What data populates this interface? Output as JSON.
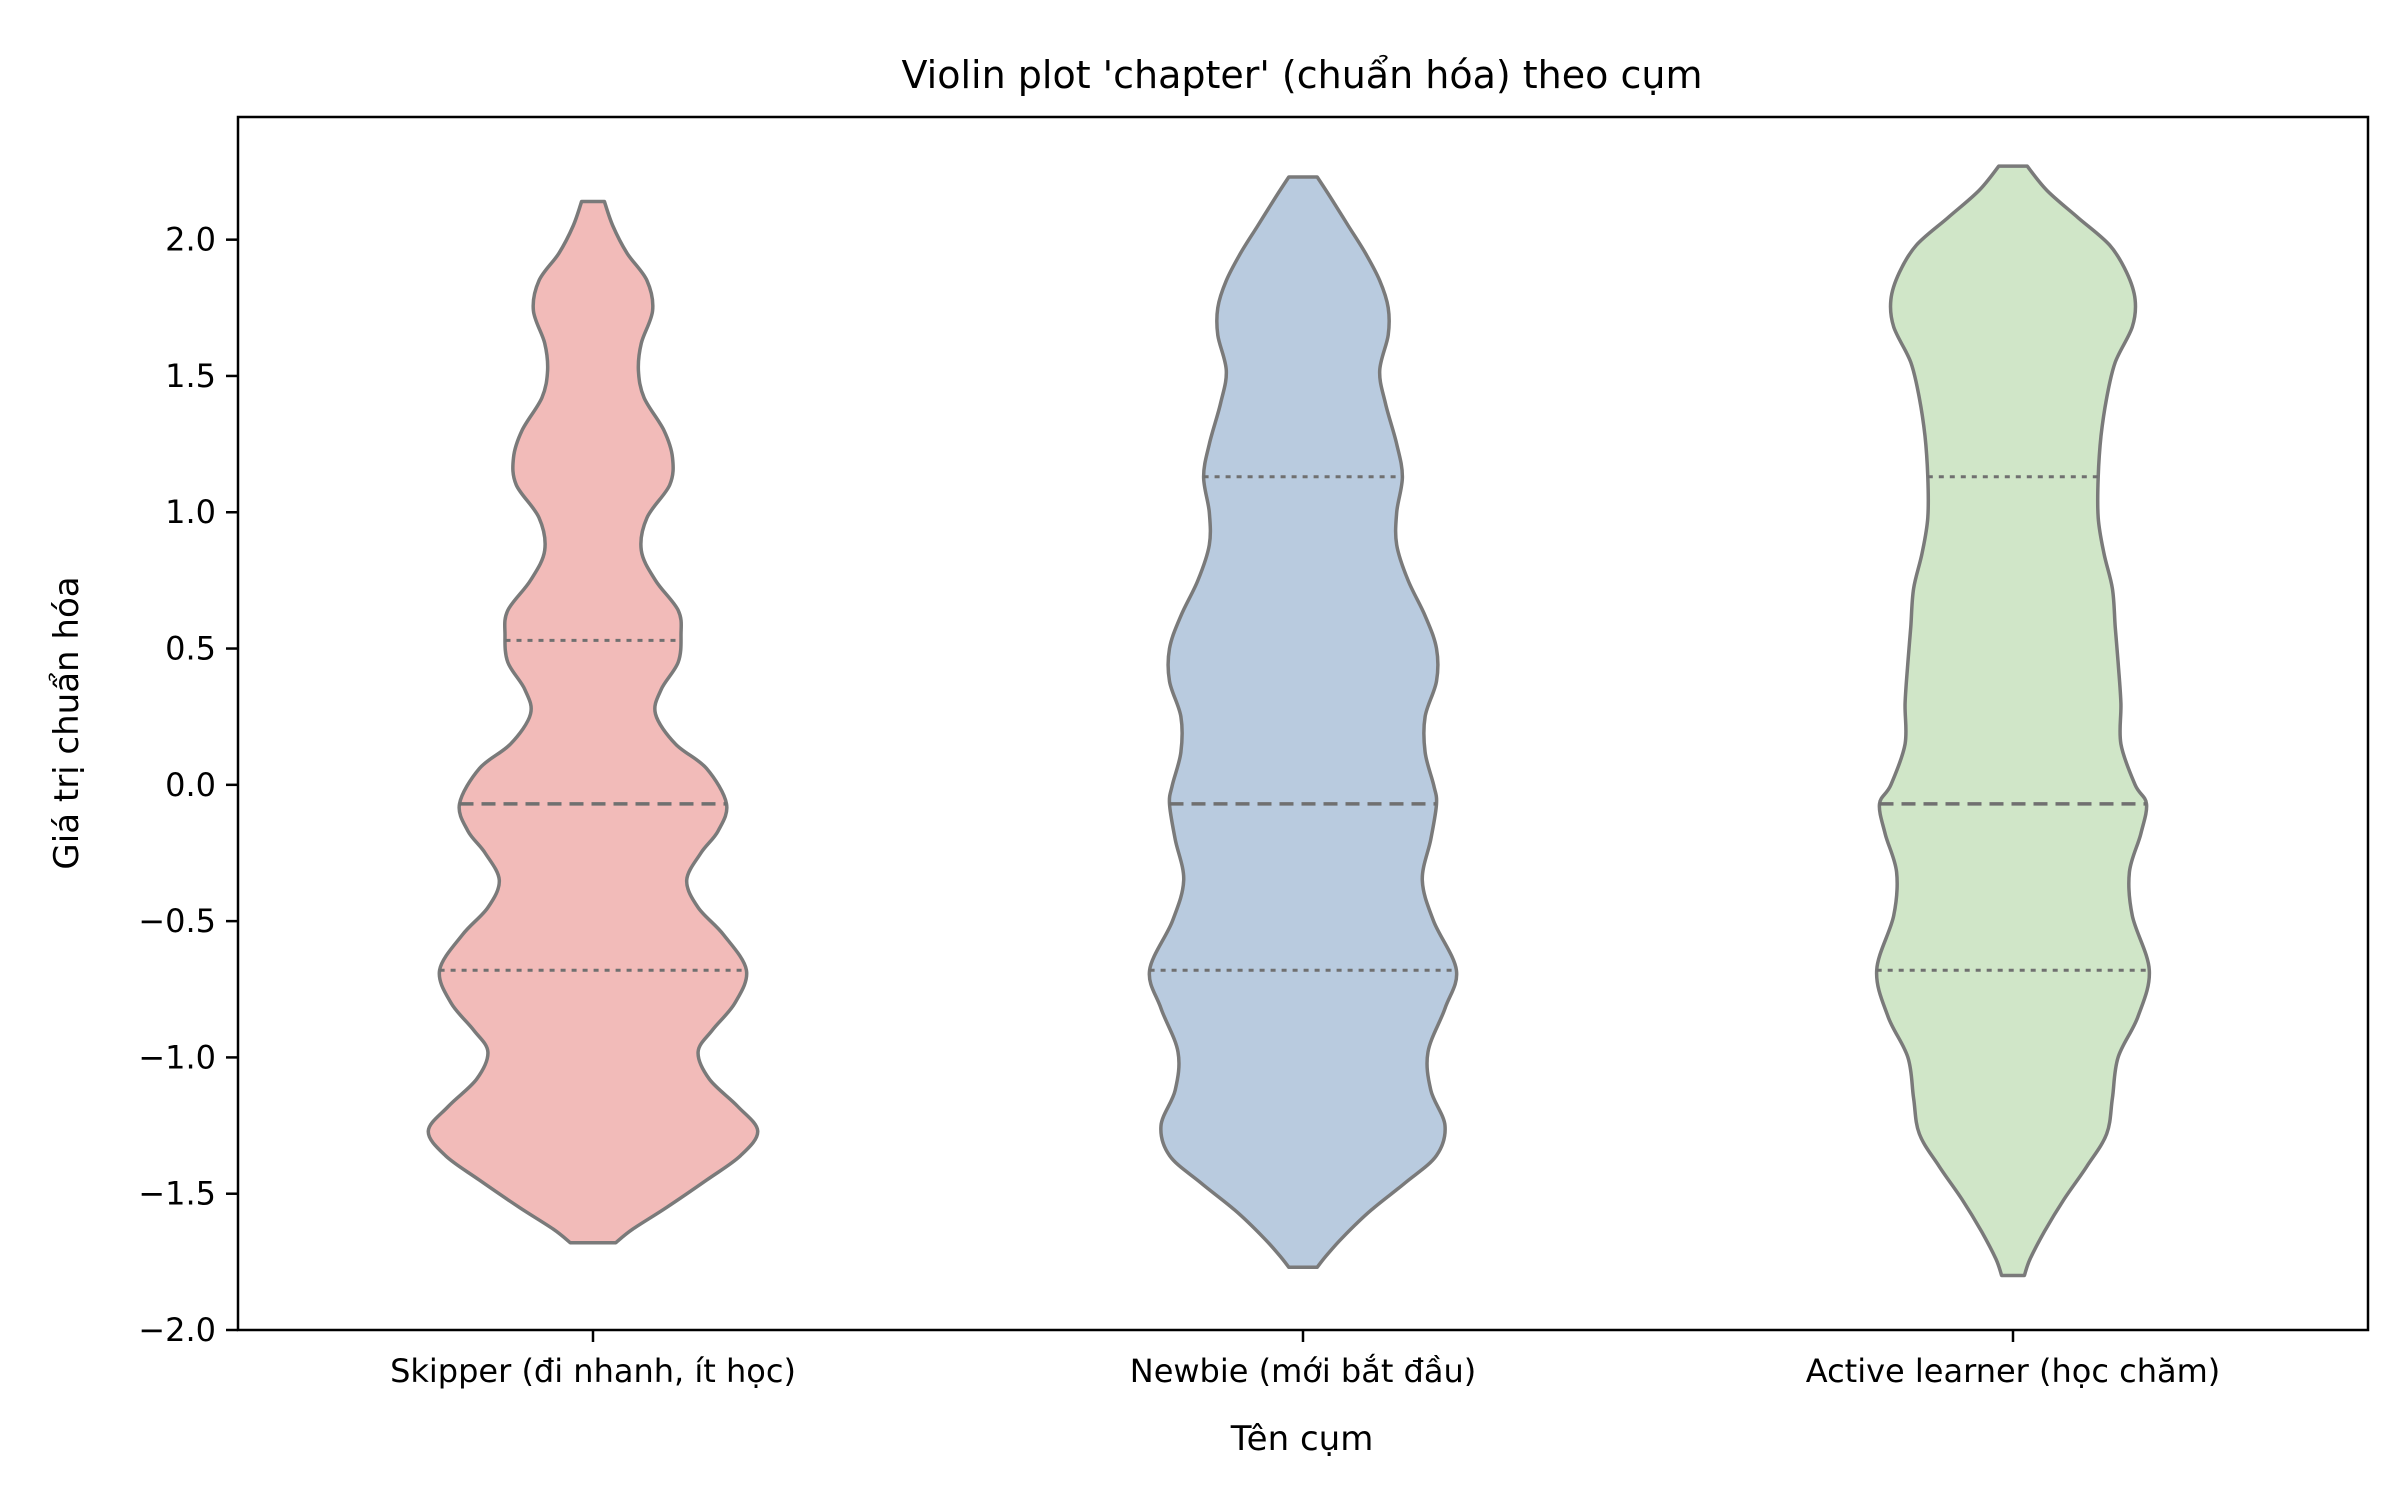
{
  "chart_data": {
    "type": "violin",
    "title": "Violin plot 'chapter' (chuẩn hóa) theo cụm",
    "xlabel": "Tên cụm",
    "ylabel": "Giá trị chuẩn hóa",
    "ylim": [
      -2.0,
      2.45
    ],
    "yticks": [
      2.0,
      1.5,
      1.0,
      0.5,
      0.0,
      -0.5,
      -1.0,
      -1.5,
      -2.0
    ],
    "ytick_labels": [
      "2.0",
      "1.5",
      "1.0",
      "0.5",
      "0.0",
      "−0.5",
      "−1.0",
      "−1.5",
      "−2.0"
    ],
    "grid": false,
    "categories": [
      "Skipper (đi nhanh, ít học)",
      "Newbie (mới bắt đầu)",
      "Active learner (học chăm)"
    ],
    "series": [
      {
        "color": "#f2bbb9",
        "quartiles": {
          "q1": -0.68,
          "median": -0.07,
          "q3": 0.53
        },
        "profile": [
          [
            2.14,
            0.04
          ],
          [
            2.05,
            0.07
          ],
          [
            1.95,
            0.12
          ],
          [
            1.85,
            0.19
          ],
          [
            1.74,
            0.21
          ],
          [
            1.62,
            0.17
          ],
          [
            1.52,
            0.16
          ],
          [
            1.42,
            0.18
          ],
          [
            1.3,
            0.25
          ],
          [
            1.2,
            0.28
          ],
          [
            1.1,
            0.27
          ],
          [
            0.98,
            0.19
          ],
          [
            0.86,
            0.17
          ],
          [
            0.75,
            0.22
          ],
          [
            0.64,
            0.3
          ],
          [
            0.55,
            0.31
          ],
          [
            0.45,
            0.3
          ],
          [
            0.35,
            0.24
          ],
          [
            0.26,
            0.22
          ],
          [
            0.15,
            0.29
          ],
          [
            0.06,
            0.4
          ],
          [
            -0.07,
            0.47
          ],
          [
            -0.17,
            0.44
          ],
          [
            -0.25,
            0.38
          ],
          [
            -0.35,
            0.33
          ],
          [
            -0.45,
            0.37
          ],
          [
            -0.55,
            0.46
          ],
          [
            -0.68,
            0.54
          ],
          [
            -0.8,
            0.5
          ],
          [
            -0.9,
            0.42
          ],
          [
            -0.98,
            0.37
          ],
          [
            -1.08,
            0.41
          ],
          [
            -1.18,
            0.51
          ],
          [
            -1.27,
            0.58
          ],
          [
            -1.36,
            0.52
          ],
          [
            -1.45,
            0.4
          ],
          [
            -1.55,
            0.26
          ],
          [
            -1.63,
            0.14
          ],
          [
            -1.68,
            0.08
          ]
        ]
      },
      {
        "color": "#b9cbdf",
        "quartiles": {
          "q1": -0.68,
          "median": -0.07,
          "q3": 1.13
        },
        "profile": [
          [
            2.23,
            0.05
          ],
          [
            2.15,
            0.1
          ],
          [
            2.05,
            0.16
          ],
          [
            1.95,
            0.22
          ],
          [
            1.85,
            0.27
          ],
          [
            1.75,
            0.3
          ],
          [
            1.65,
            0.3
          ],
          [
            1.52,
            0.27
          ],
          [
            1.4,
            0.29
          ],
          [
            1.25,
            0.33
          ],
          [
            1.13,
            0.35
          ],
          [
            1.0,
            0.33
          ],
          [
            0.88,
            0.33
          ],
          [
            0.75,
            0.37
          ],
          [
            0.62,
            0.43
          ],
          [
            0.5,
            0.47
          ],
          [
            0.38,
            0.47
          ],
          [
            0.25,
            0.43
          ],
          [
            0.12,
            0.43
          ],
          [
            0.0,
            0.46
          ],
          [
            -0.07,
            0.47
          ],
          [
            -0.2,
            0.45
          ],
          [
            -0.35,
            0.42
          ],
          [
            -0.5,
            0.46
          ],
          [
            -0.68,
            0.54
          ],
          [
            -0.82,
            0.5
          ],
          [
            -0.98,
            0.44
          ],
          [
            -1.12,
            0.45
          ],
          [
            -1.25,
            0.5
          ],
          [
            -1.36,
            0.47
          ],
          [
            -1.46,
            0.36
          ],
          [
            -1.56,
            0.24
          ],
          [
            -1.66,
            0.14
          ],
          [
            -1.73,
            0.08
          ],
          [
            -1.77,
            0.05
          ]
        ]
      },
      {
        "color": "#d0e6c8",
        "quartiles": {
          "q1": -0.68,
          "median": -0.07,
          "q3": 1.13
        },
        "profile": [
          [
            2.27,
            0.05
          ],
          [
            2.18,
            0.12
          ],
          [
            2.08,
            0.23
          ],
          [
            1.98,
            0.34
          ],
          [
            1.88,
            0.4
          ],
          [
            1.78,
            0.43
          ],
          [
            1.68,
            0.42
          ],
          [
            1.55,
            0.36
          ],
          [
            1.42,
            0.33
          ],
          [
            1.28,
            0.31
          ],
          [
            1.13,
            0.3
          ],
          [
            0.98,
            0.3
          ],
          [
            0.85,
            0.32
          ],
          [
            0.72,
            0.35
          ],
          [
            0.58,
            0.36
          ],
          [
            0.45,
            0.37
          ],
          [
            0.3,
            0.38
          ],
          [
            0.15,
            0.38
          ],
          [
            0.0,
            0.43
          ],
          [
            -0.07,
            0.47
          ],
          [
            -0.18,
            0.45
          ],
          [
            -0.32,
            0.41
          ],
          [
            -0.48,
            0.42
          ],
          [
            -0.68,
            0.48
          ],
          [
            -0.85,
            0.44
          ],
          [
            -1.0,
            0.37
          ],
          [
            -1.15,
            0.35
          ],
          [
            -1.28,
            0.33
          ],
          [
            -1.4,
            0.26
          ],
          [
            -1.52,
            0.18
          ],
          [
            -1.64,
            0.11
          ],
          [
            -1.74,
            0.06
          ],
          [
            -1.8,
            0.04
          ]
        ]
      }
    ]
  }
}
